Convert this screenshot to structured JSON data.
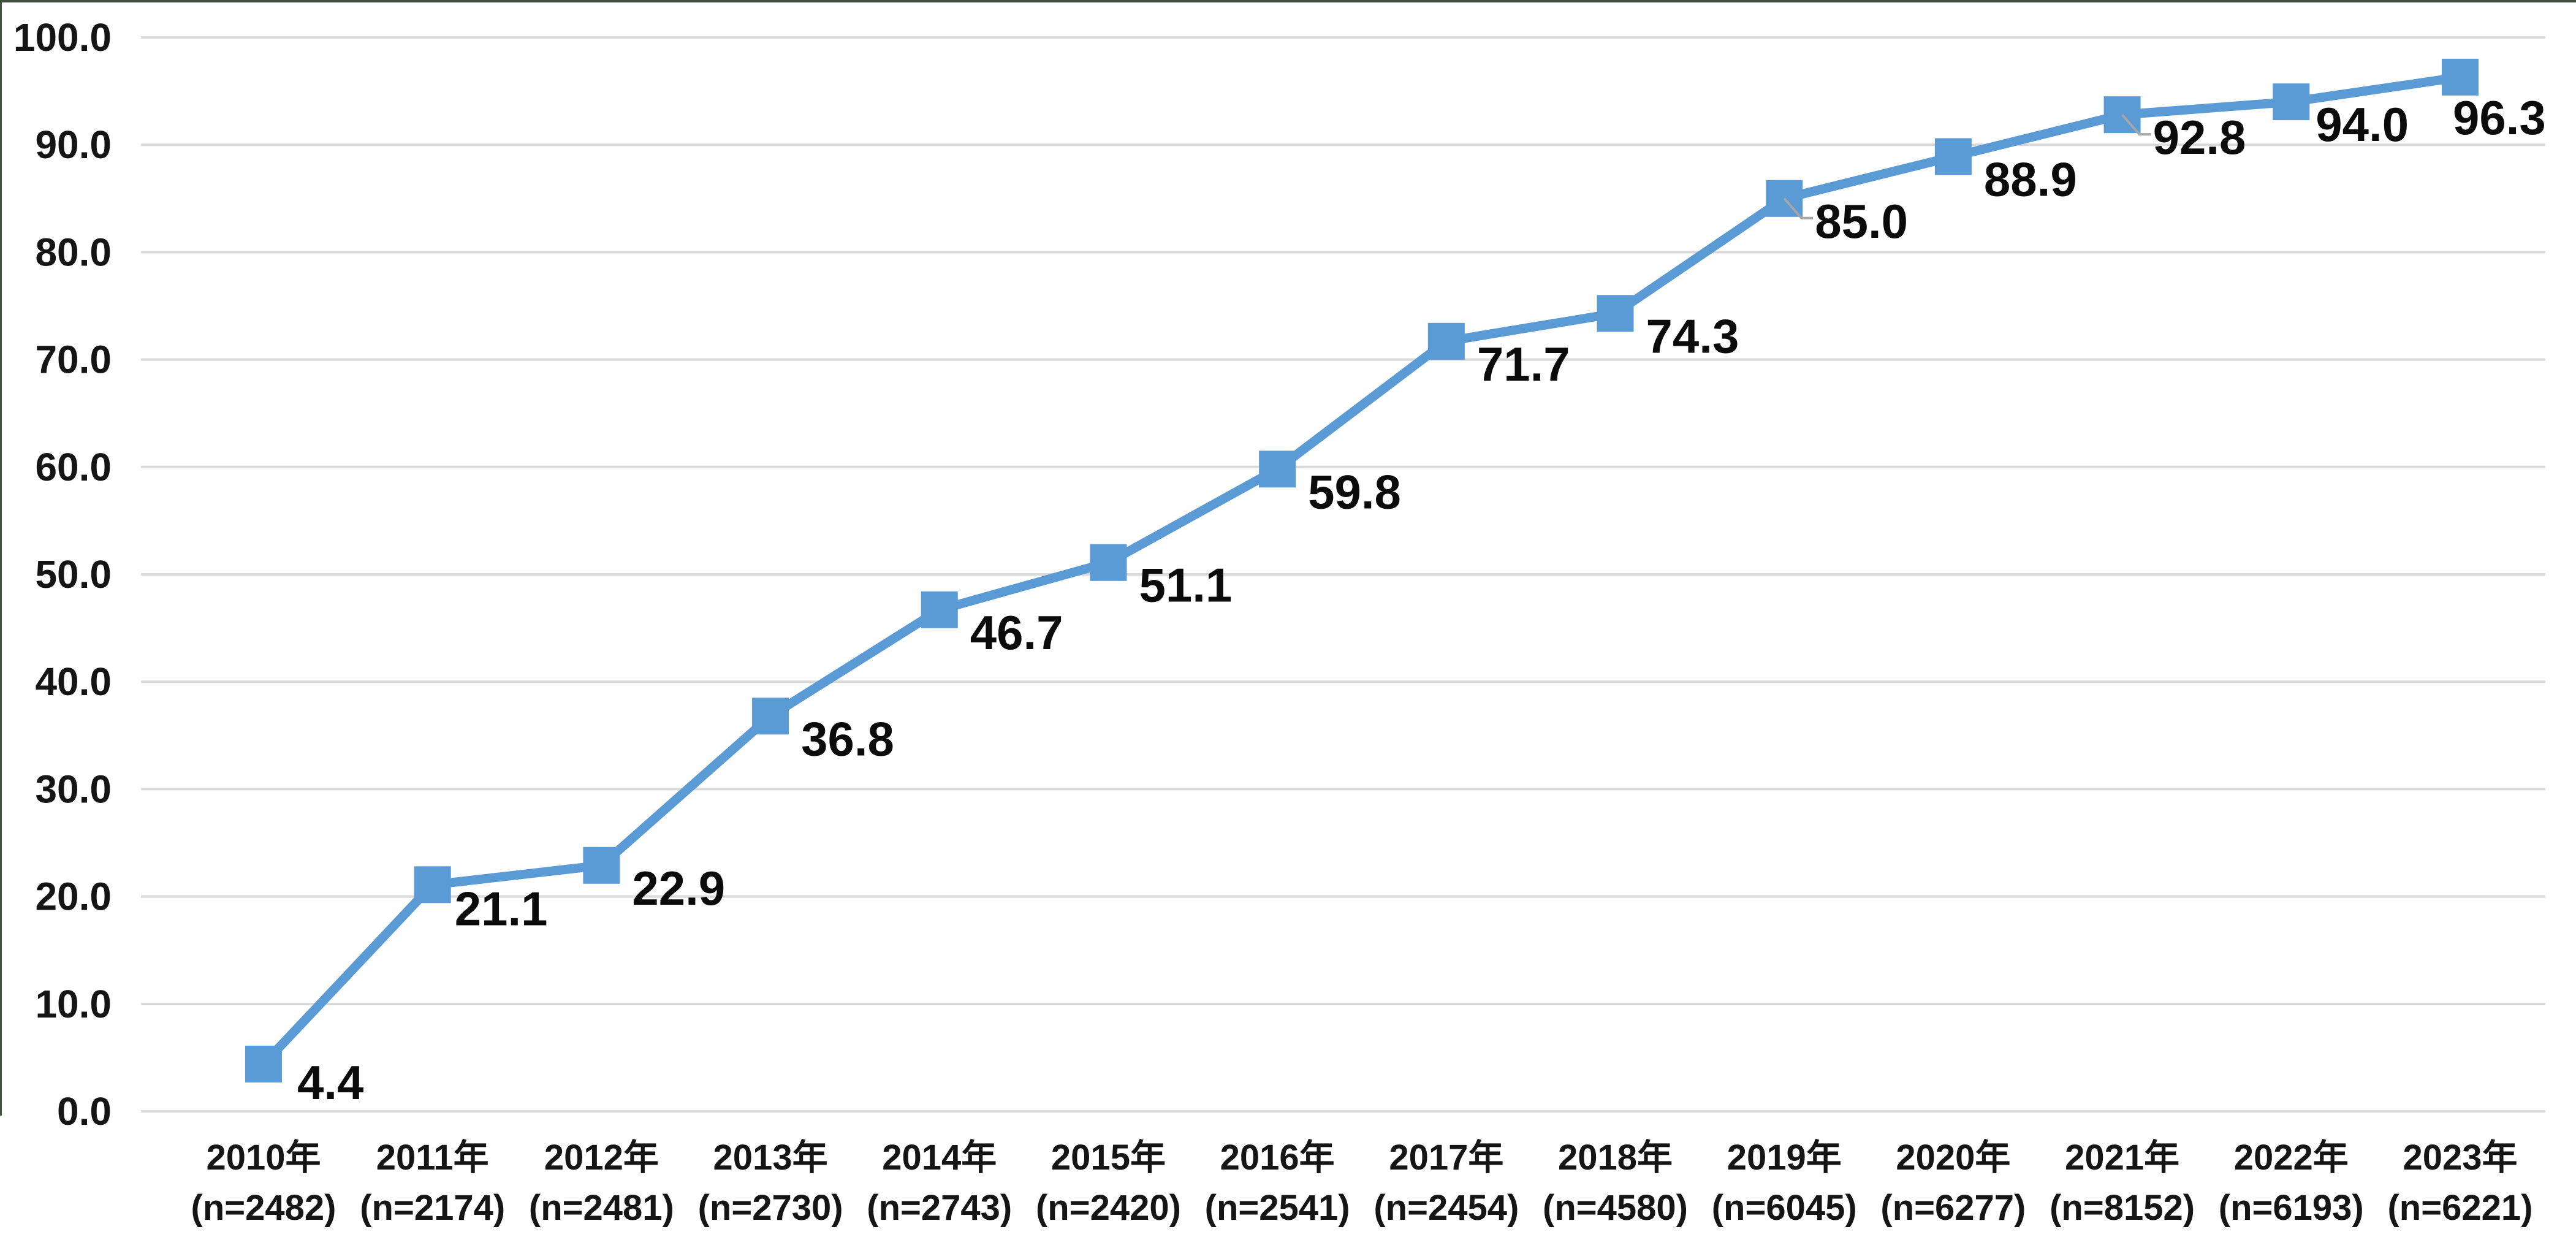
{
  "chart_data": {
    "type": "line",
    "title": "",
    "categories": [
      "2010年",
      "2011年",
      "2012年",
      "2013年",
      "2014年",
      "2015年",
      "2016年",
      "2017年",
      "2018年",
      "2019年",
      "2020年",
      "2021年",
      "2022年",
      "2023年"
    ],
    "category_sublabels": [
      "(n=2482)",
      "(n=2174)",
      "(n=2481)",
      "(n=2730)",
      "(n=2743)",
      "(n=2420)",
      "(n=2541)",
      "(n=2454)",
      "(n=4580)",
      "(n=6045)",
      "(n=6277)",
      "(n=8152)",
      "(n=6193)",
      "(n=6221)"
    ],
    "series": [
      {
        "name": "",
        "values": [
          4.4,
          21.1,
          22.9,
          36.8,
          46.7,
          51.1,
          59.8,
          71.7,
          74.3,
          85.0,
          88.9,
          92.8,
          94.0,
          96.3
        ],
        "value_labels": [
          "4.4",
          "21.1",
          "22.9",
          "36.8",
          "46.7",
          "51.1",
          "59.8",
          "71.7",
          "74.3",
          "85.0",
          "88.9",
          "92.8",
          "94.0",
          "96.3"
        ]
      }
    ],
    "xlabel": "",
    "ylabel": "",
    "ylim": [
      0,
      100
    ],
    "y_tick_labels": [
      "0.0",
      "10.0",
      "20.0",
      "30.0",
      "40.0",
      "50.0",
      "60.0",
      "70.0",
      "80.0",
      "90.0",
      "100.0"
    ],
    "grid": true,
    "legend_position": "none",
    "marker_shape": "square",
    "colors": {
      "series": "#5B9BD5",
      "gridline": "#D9D9D9",
      "axis_text": "#151515",
      "label_text": "#0b0b0b",
      "leader_line": "#A6A6A6",
      "frame_border": "#41503F",
      "background": "#FFFFFF"
    }
  }
}
